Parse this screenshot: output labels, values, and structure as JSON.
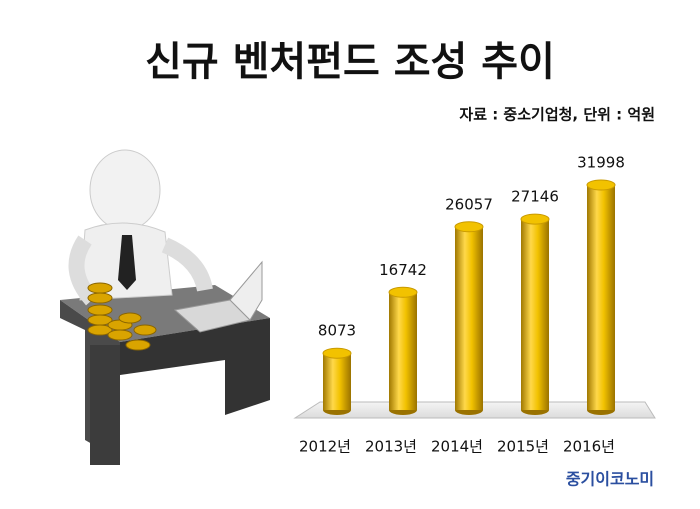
{
  "chart_data": {
    "type": "bar",
    "title": "신규 벤처펀드 조성 추이",
    "subtitle": "자료 : 중소기업청, 단위 : 억원",
    "categories": [
      "2012년",
      "2013년",
      "2014년",
      "2015년",
      "2016년"
    ],
    "values": [
      8073,
      16742,
      26057,
      27146,
      31998
    ],
    "color": "#f2c200",
    "brand": "중기이코노미"
  }
}
